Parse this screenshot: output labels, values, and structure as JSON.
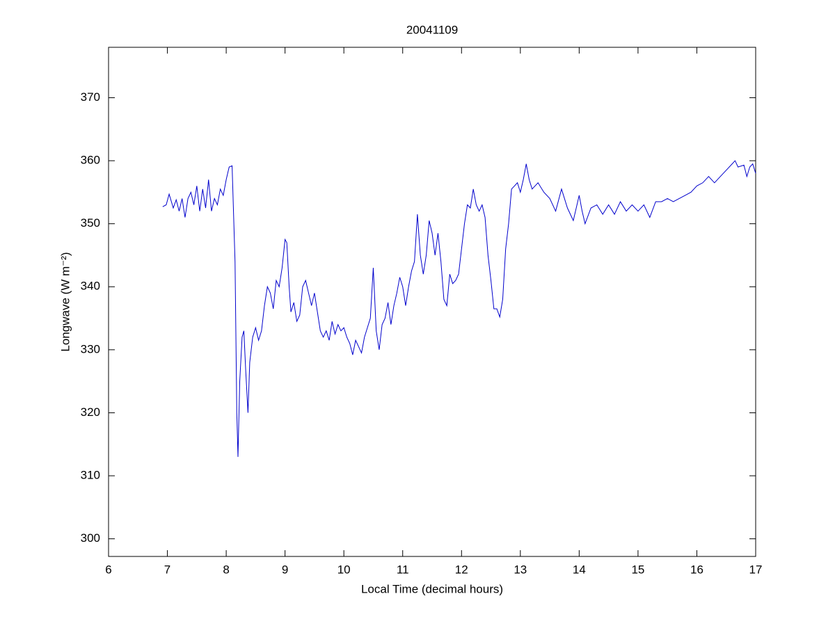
{
  "chart_data": {
    "type": "line",
    "title": "20041109",
    "xlabel": "Local Time (decimal hours)",
    "ylabel": "Longwave (W m⁻²)",
    "xlim": [
      6,
      17
    ],
    "ylim": [
      297.2,
      378
    ],
    "xticks": [
      6,
      7,
      8,
      9,
      10,
      11,
      12,
      13,
      14,
      15,
      16,
      17
    ],
    "yticks": [
      300,
      310,
      320,
      330,
      340,
      350,
      360,
      370
    ],
    "x": [
      6.92,
      6.98,
      7.03,
      7.1,
      7.15,
      7.2,
      7.25,
      7.3,
      7.35,
      7.4,
      7.45,
      7.5,
      7.55,
      7.6,
      7.65,
      7.7,
      7.75,
      7.8,
      7.85,
      7.9,
      7.95,
      8.0,
      8.05,
      8.1,
      8.15,
      8.18,
      8.2,
      8.23,
      8.27,
      8.3,
      8.33,
      8.37,
      8.4,
      8.45,
      8.5,
      8.55,
      8.6,
      8.65,
      8.7,
      8.75,
      8.8,
      8.85,
      8.9,
      8.95,
      9.0,
      9.03,
      9.07,
      9.1,
      9.15,
      9.2,
      9.25,
      9.3,
      9.35,
      9.4,
      9.45,
      9.5,
      9.55,
      9.6,
      9.65,
      9.7,
      9.75,
      9.8,
      9.85,
      9.9,
      9.95,
      10.0,
      10.05,
      10.1,
      10.15,
      10.2,
      10.25,
      10.3,
      10.35,
      10.4,
      10.45,
      10.5,
      10.55,
      10.6,
      10.65,
      10.7,
      10.75,
      10.8,
      10.85,
      10.9,
      10.95,
      11.0,
      11.05,
      11.1,
      11.15,
      11.2,
      11.25,
      11.3,
      11.35,
      11.4,
      11.45,
      11.5,
      11.55,
      11.6,
      11.65,
      11.7,
      11.75,
      11.8,
      11.85,
      11.9,
      11.95,
      12.0,
      12.05,
      12.1,
      12.15,
      12.2,
      12.25,
      12.3,
      12.35,
      12.4,
      12.45,
      12.5,
      12.55,
      12.6,
      12.65,
      12.7,
      12.75,
      12.8,
      12.85,
      12.9,
      12.95,
      13.0,
      13.05,
      13.1,
      13.15,
      13.2,
      13.3,
      13.4,
      13.5,
      13.6,
      13.7,
      13.8,
      13.9,
      14.0,
      14.05,
      14.1,
      14.2,
      14.3,
      14.4,
      14.5,
      14.6,
      14.7,
      14.8,
      14.9,
      15.0,
      15.1,
      15.2,
      15.3,
      15.4,
      15.5,
      15.6,
      15.7,
      15.8,
      15.9,
      16.0,
      16.1,
      16.2,
      16.3,
      16.4,
      16.5,
      16.6,
      16.65,
      16.7,
      16.8,
      16.85,
      16.9,
      16.95,
      17.0
    ],
    "series": [
      {
        "color": "#0000cc",
        "values": [
          352.7,
          353,
          354.7,
          352.5,
          353.8,
          352,
          354,
          351,
          354,
          355,
          353,
          356,
          352,
          355.5,
          352.5,
          357,
          352,
          354,
          353,
          355.5,
          354.5,
          357,
          359,
          359.2,
          344,
          320,
          313,
          325,
          332,
          333,
          327,
          320,
          328,
          332,
          333.5,
          331.5,
          333,
          337,
          340,
          339,
          336.5,
          341,
          340,
          343,
          347.5,
          347,
          340,
          336,
          337.5,
          334.5,
          335.5,
          340,
          341,
          339,
          337,
          339,
          336,
          333,
          332,
          333,
          331.5,
          334.5,
          332.5,
          334,
          333,
          333.5,
          332,
          331,
          329.2,
          331.5,
          330.5,
          329.5,
          332,
          333.5,
          335,
          343,
          333,
          330,
          334,
          335,
          337.5,
          334,
          337,
          339,
          341.5,
          340,
          337,
          340,
          342.5,
          344,
          351.5,
          345,
          342,
          345,
          350.5,
          348.5,
          345,
          348.5,
          344,
          338,
          337,
          342,
          340.5,
          341,
          342,
          346,
          350,
          353,
          352.5,
          355.5,
          353,
          352,
          353,
          351,
          345,
          341,
          336.5,
          336.5,
          335.2,
          338,
          346,
          350,
          355.5,
          356,
          356.5,
          355,
          357,
          359.5,
          357,
          355.5,
          356.5,
          355,
          354,
          352,
          355.5,
          352.5,
          350.5,
          354.5,
          352,
          350,
          352.5,
          353,
          351.5,
          353,
          351.5,
          353.5,
          352,
          353,
          352,
          353,
          351,
          353.5,
          353.5,
          354,
          353.5,
          354,
          354.5,
          355,
          356,
          356.5,
          357.5,
          356.5,
          357.5,
          358.5,
          359.5,
          360,
          359,
          359.3,
          357.5,
          359,
          359.5,
          358
        ]
      }
    ]
  }
}
